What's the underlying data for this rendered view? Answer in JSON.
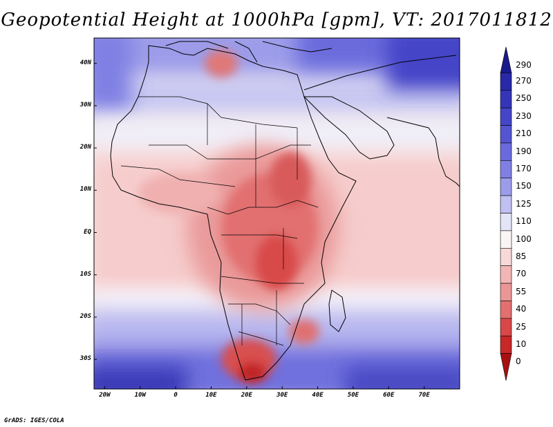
{
  "title": "Geopotential Height at 1000hPa [gpm], VT: 2017011812",
  "footer": "GrADS: IGES/COLA",
  "map": {
    "projection": "latlon",
    "lon_range": [
      -23,
      80
    ],
    "lat_range": [
      -37,
      46
    ],
    "lat_ticks": [
      "40N",
      "30N",
      "20N",
      "10N",
      "EQ",
      "10S",
      "20S",
      "30S"
    ],
    "lon_ticks": [
      "20W",
      "10W",
      "0",
      "10E",
      "20E",
      "30E",
      "40E",
      "50E",
      "60E",
      "70E"
    ],
    "colorbar": {
      "levels": [
        "290",
        "270",
        "250",
        "230",
        "210",
        "190",
        "170",
        "150",
        "125",
        "110",
        "100",
        "85",
        "70",
        "55",
        "40",
        "25",
        "10",
        "0"
      ],
      "colors": [
        "#1a1a8c",
        "#2828a8",
        "#3535b8",
        "#4545c8",
        "#5555d2",
        "#6a6adc",
        "#8080e4",
        "#9c9cea",
        "#c0c0f2",
        "#e4e4f8",
        "#fbf4f4",
        "#f8d8d8",
        "#f2b6b6",
        "#eb9696",
        "#e27070",
        "#d84848",
        "#c82828",
        "#a81010"
      ]
    }
  }
}
